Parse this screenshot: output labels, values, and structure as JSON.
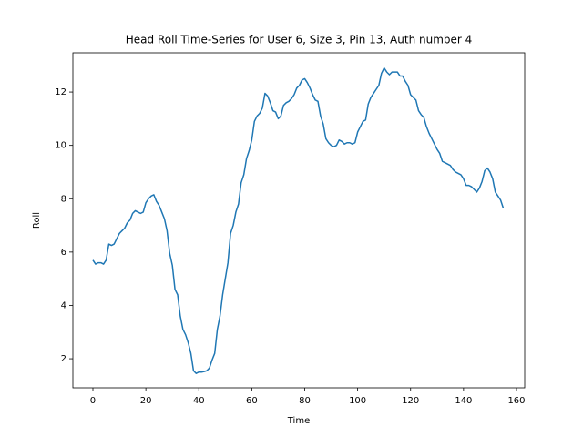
{
  "chart_data": {
    "type": "line",
    "title": "Head Roll Time-Series for User 6, Size 3, Pin 13, Auth number 4",
    "xlabel": "Time",
    "ylabel": "Roll",
    "x": [
      0,
      1,
      2,
      3,
      4,
      5,
      6,
      7,
      8,
      9,
      10,
      11,
      12,
      13,
      14,
      15,
      16,
      17,
      18,
      19,
      20,
      21,
      22,
      23,
      24,
      25,
      26,
      27,
      28,
      29,
      30,
      31,
      32,
      33,
      34,
      35,
      36,
      37,
      38,
      39,
      40,
      41,
      42,
      43,
      44,
      45,
      46,
      47,
      48,
      49,
      50,
      51,
      52,
      53,
      54,
      55,
      56,
      57,
      58,
      59,
      60,
      61,
      62,
      63,
      64,
      65,
      66,
      67,
      68,
      69,
      70,
      71,
      72,
      73,
      74,
      75,
      76,
      77,
      78,
      79,
      80,
      81,
      82,
      83,
      84,
      85,
      86,
      87,
      88,
      89,
      90,
      91,
      92,
      93,
      94,
      95,
      96,
      97,
      98,
      99,
      100,
      101,
      102,
      103,
      104,
      105,
      106,
      107,
      108,
      109,
      110,
      111,
      112,
      113,
      114,
      115,
      116,
      117,
      118,
      119,
      120,
      121,
      122,
      123,
      124,
      125,
      126,
      127,
      128,
      129,
      130,
      131,
      132,
      133,
      134,
      135,
      136,
      137,
      138,
      139,
      140,
      141,
      142,
      143,
      144,
      145,
      146,
      147,
      148,
      149,
      150,
      151,
      152,
      153,
      154,
      155
    ],
    "series": [
      {
        "color": "#1f77b4",
        "values": [
          5.7,
          5.55,
          5.6,
          5.6,
          5.55,
          5.7,
          6.3,
          6.25,
          6.3,
          6.5,
          6.7,
          6.8,
          6.9,
          7.1,
          7.2,
          7.45,
          7.55,
          7.5,
          7.45,
          7.5,
          7.85,
          8.0,
          8.1,
          8.15,
          7.9,
          7.75,
          7.5,
          7.25,
          6.8,
          5.95,
          5.5,
          4.6,
          4.4,
          3.6,
          3.1,
          2.9,
          2.6,
          2.2,
          1.55,
          1.45,
          1.5,
          1.5,
          1.52,
          1.55,
          1.65,
          1.95,
          2.2,
          3.1,
          3.6,
          4.4,
          5.0,
          5.6,
          6.7,
          7.0,
          7.5,
          7.8,
          8.6,
          8.9,
          9.5,
          9.8,
          10.2,
          10.9,
          11.1,
          11.2,
          11.4,
          11.95,
          11.85,
          11.6,
          11.3,
          11.25,
          11.0,
          11.1,
          11.5,
          11.6,
          11.65,
          11.75,
          11.9,
          12.15,
          12.25,
          12.45,
          12.5,
          12.35,
          12.15,
          11.9,
          11.7,
          11.65,
          11.1,
          10.8,
          10.25,
          10.1,
          10.0,
          9.95,
          10.0,
          10.2,
          10.15,
          10.05,
          10.1,
          10.1,
          10.05,
          10.1,
          10.5,
          10.7,
          10.9,
          10.95,
          11.55,
          11.8,
          11.95,
          12.1,
          12.25,
          12.7,
          12.9,
          12.75,
          12.65,
          12.75,
          12.75,
          12.75,
          12.6,
          12.6,
          12.4,
          12.25,
          11.9,
          11.8,
          11.7,
          11.3,
          11.15,
          11.05,
          10.7,
          10.45,
          10.25,
          10.05,
          9.85,
          9.7,
          9.4,
          9.35,
          9.3,
          9.25,
          9.1,
          9.0,
          8.95,
          8.9,
          8.75,
          8.5,
          8.5,
          8.45,
          8.35,
          8.25,
          8.4,
          8.65,
          9.05,
          9.15,
          9.0,
          8.75,
          8.25,
          8.1,
          7.95,
          7.65
        ]
      }
    ],
    "xlim": [
      -7.57,
      163.1
    ],
    "xticks": [
      0,
      20,
      40,
      60,
      80,
      100,
      120,
      140,
      160
    ],
    "ylim": [
      0.91,
      13.47
    ],
    "yticks": [
      2,
      4,
      6,
      8,
      10,
      12
    ]
  }
}
